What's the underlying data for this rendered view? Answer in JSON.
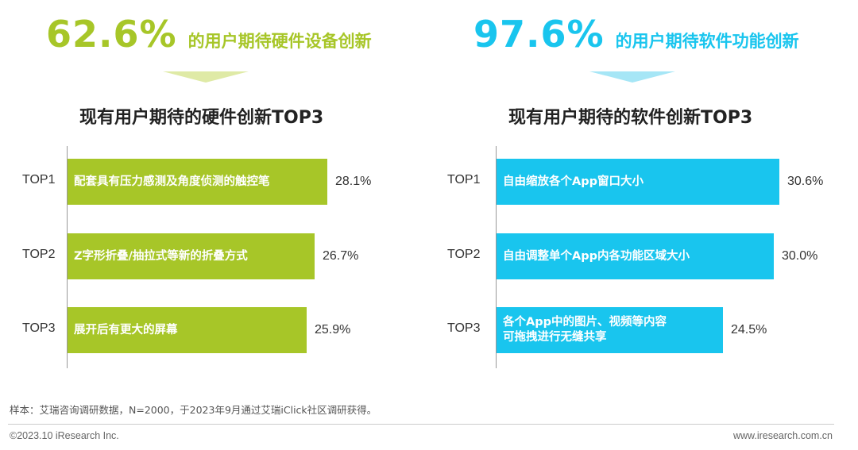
{
  "colors": {
    "hardware": "#a7c628",
    "software": "#19c5ee",
    "hardware_arrow": "#dfeaa6",
    "software_arrow": "#a6e6f6"
  },
  "left": {
    "headline_value": "62.6%",
    "headline_text": "的用户期待硬件设备创新"
  },
  "right": {
    "headline_value": "97.6%",
    "headline_text": "的用户期待软件功能创新"
  },
  "chart_data": [
    {
      "type": "bar",
      "orientation": "horizontal",
      "title": "现有用户期待的硬件创新TOP3",
      "categories": [
        "TOP1",
        "TOP2",
        "TOP3"
      ],
      "bar_labels": [
        [
          "配套具有压力感测及角度侦测的触控笔"
        ],
        [
          "Z字形折叠/抽拉式等新的折叠方式"
        ],
        [
          "展开后有更大的屏幕"
        ]
      ],
      "values": [
        28.1,
        26.7,
        25.9
      ],
      "value_labels": [
        "28.1%",
        "26.7%",
        "25.9%"
      ],
      "unit": "%",
      "xlim": [
        0,
        30.6
      ],
      "color": "#a7c628"
    },
    {
      "type": "bar",
      "orientation": "horizontal",
      "title": "现有用户期待的软件创新TOP3",
      "categories": [
        "TOP1",
        "TOP2",
        "TOP3"
      ],
      "bar_labels": [
        [
          "自由缩放各个App窗口大小"
        ],
        [
          "自由调整单个App内各功能区域大小"
        ],
        [
          "各个App中的图片、视频等内容",
          "可拖拽进行无缝共享"
        ]
      ],
      "values": [
        30.6,
        30.0,
        24.5
      ],
      "value_labels": [
        "30.6%",
        "30.0%",
        "24.5%"
      ],
      "unit": "%",
      "xlim": [
        0,
        30.6
      ],
      "color": "#19c5ee"
    }
  ],
  "note": "样本：艾瑞咨询调研数据，N=2000，于2023年9月通过艾瑞iClick社区调研获得。",
  "footer": {
    "copyright": "©2023.10 iResearch Inc.",
    "website": "www.iresearch.com.cn"
  }
}
